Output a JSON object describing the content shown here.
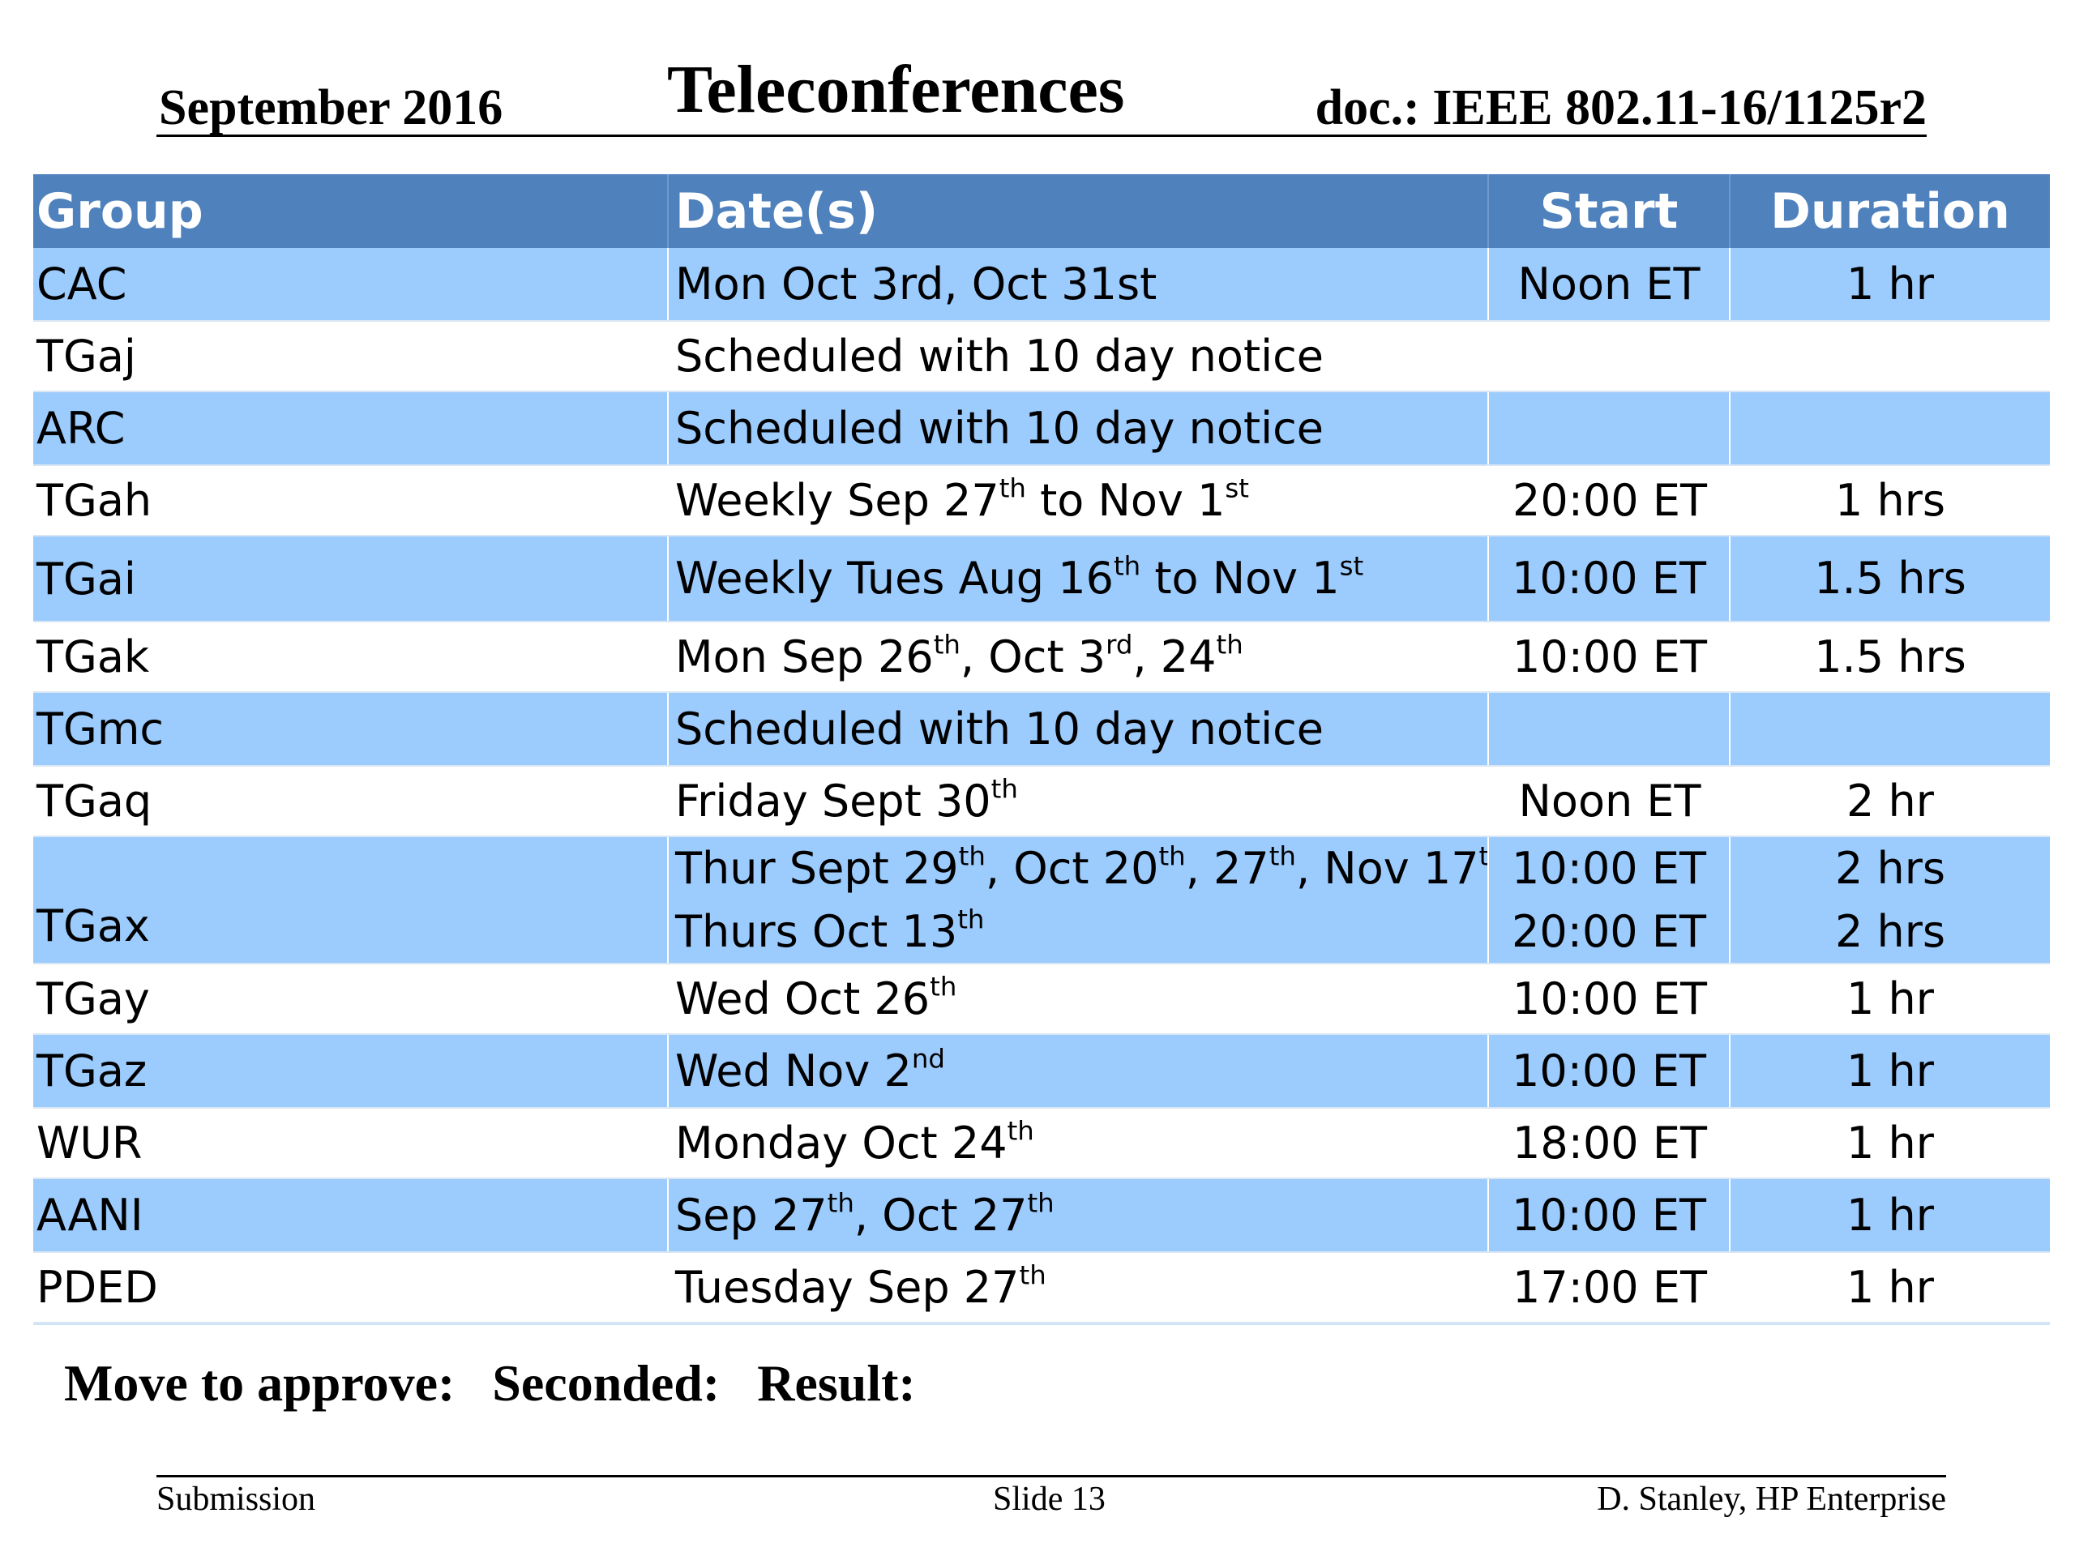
{
  "header": {
    "date": "September 2016",
    "title": "Teleconferences",
    "doc": "doc.: IEEE 802.11-16/1125r2"
  },
  "table": {
    "columns": [
      "Group",
      "Date(s)",
      "Start",
      "Duration"
    ],
    "rows": [
      {
        "group": "CAC",
        "date": [
          [
            [
              "Mon Oct 3rd, Oct 31st",
              false
            ]
          ]
        ],
        "start": [
          "Noon ET"
        ],
        "duration": [
          "1 hr"
        ]
      },
      {
        "group": "TGaj",
        "date": [
          [
            [
              "Scheduled with 10 day notice",
              false
            ]
          ]
        ],
        "start": [
          ""
        ],
        "duration": [
          ""
        ]
      },
      {
        "group": "ARC",
        "date": [
          [
            [
              "Scheduled with 10 day notice",
              false
            ]
          ]
        ],
        "start": [
          ""
        ],
        "duration": [
          ""
        ]
      },
      {
        "group": "TGah",
        "date": [
          [
            [
              "Weekly Sep 27",
              false
            ],
            [
              "th",
              true
            ],
            [
              " to Nov 1",
              false
            ],
            [
              "st",
              true
            ]
          ]
        ],
        "start": [
          "20:00 ET"
        ],
        "duration": [
          "1 hrs"
        ]
      },
      {
        "group": "TGai",
        "date": [
          [
            [
              "Weekly Tues Aug 16",
              false
            ],
            [
              "th",
              true
            ],
            [
              " to Nov 1",
              false
            ],
            [
              "st",
              true
            ]
          ]
        ],
        "start": [
          "10:00 ET"
        ],
        "duration": [
          "1.5 hrs"
        ]
      },
      {
        "group": "TGak",
        "date": [
          [
            [
              "Mon  Sep 26",
              false
            ],
            [
              "th",
              true
            ],
            [
              ", Oct 3",
              false
            ],
            [
              "rd",
              true
            ],
            [
              ", 24",
              false
            ],
            [
              "th",
              true
            ]
          ]
        ],
        "start": [
          "10:00 ET"
        ],
        "duration": [
          "1.5 hrs"
        ]
      },
      {
        "group": "TGmc",
        "date": [
          [
            [
              "Scheduled with 10 day notice",
              false
            ]
          ]
        ],
        "start": [
          ""
        ],
        "duration": [
          ""
        ]
      },
      {
        "group": "TGaq",
        "date": [
          [
            [
              "Friday Sept 30",
              false
            ],
            [
              "th",
              true
            ]
          ]
        ],
        "start": [
          "Noon ET"
        ],
        "duration": [
          "2 hr"
        ]
      },
      {
        "group": "TGax",
        "date": [
          [
            [
              "Thur Sept 29",
              false
            ],
            [
              "th",
              true
            ],
            [
              ", Oct 20",
              false
            ],
            [
              "th",
              true
            ],
            [
              ", 27",
              false
            ],
            [
              "th",
              true
            ],
            [
              ", Nov 17",
              false
            ],
            [
              "th",
              true
            ]
          ],
          [
            [
              "Thurs Oct 13",
              false
            ],
            [
              "th",
              true
            ]
          ]
        ],
        "start": [
          "10:00 ET",
          "20:00 ET"
        ],
        "duration": [
          "2 hrs",
          "2 hrs"
        ]
      },
      {
        "group": "TGay",
        "date": [
          [
            [
              "Wed Oct 26",
              false
            ],
            [
              "th",
              true
            ]
          ]
        ],
        "start": [
          "10:00 ET"
        ],
        "duration": [
          "1 hr"
        ]
      },
      {
        "group": "TGaz",
        "date": [
          [
            [
              "Wed Nov 2",
              false
            ],
            [
              "nd",
              true
            ]
          ]
        ],
        "start": [
          "10:00 ET"
        ],
        "duration": [
          "1 hr"
        ]
      },
      {
        "group": "WUR",
        "date": [
          [
            [
              "Monday Oct 24",
              false
            ],
            [
              "th",
              true
            ]
          ]
        ],
        "start": [
          "18:00 ET"
        ],
        "duration": [
          "1 hr"
        ]
      },
      {
        "group": "AANI",
        "date": [
          [
            [
              "Sep 27",
              false
            ],
            [
              "th",
              true
            ],
            [
              ", Oct 27",
              false
            ],
            [
              "th",
              true
            ]
          ]
        ],
        "start": [
          "10:00 ET"
        ],
        "duration": [
          "1 hr"
        ]
      },
      {
        "group": "PDED",
        "date": [
          [
            [
              "Tuesday Sep 27",
              false
            ],
            [
              "th",
              true
            ]
          ]
        ],
        "start": [
          "17:00 ET"
        ],
        "duration": [
          "1 hr"
        ]
      }
    ]
  },
  "motion": {
    "move": "Move to approve:",
    "seconded": "Seconded:",
    "result": "Result:"
  },
  "footer": {
    "left": "Submission",
    "center": "Slide 13",
    "right": "D. Stanley, HP Enterprise"
  },
  "colors": {
    "header_bg": "#4f81bd",
    "row_blue": "#9ccbfd",
    "row_white": "#ffffff"
  }
}
